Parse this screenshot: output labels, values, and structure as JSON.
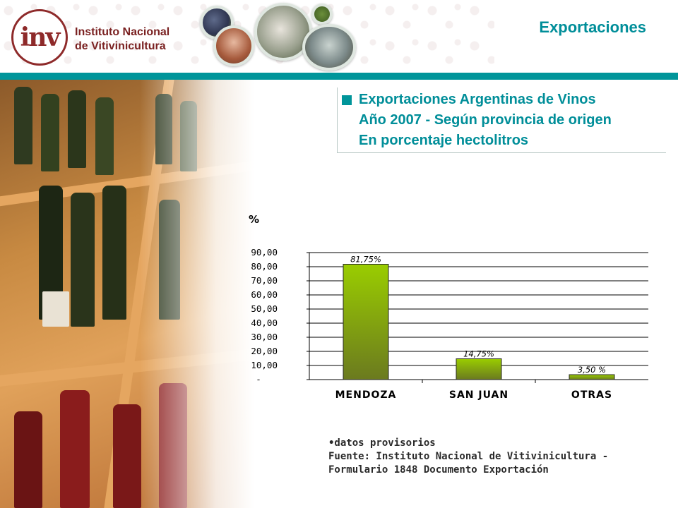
{
  "header": {
    "org_line1": "Instituto Nacional",
    "org_line2": "de Vitivinicultura",
    "logo_letters": "inv",
    "section": "Exportaciones"
  },
  "title": {
    "line1": "Exportaciones Argentinas de Vinos",
    "line2": "Año 2007 - Según provincia de origen",
    "line3": "En porcentaje hectolitros"
  },
  "chart_data": {
    "type": "bar",
    "unit_label": "%",
    "categories": [
      "MENDOZA",
      "SAN JUAN",
      "OTRAS"
    ],
    "values": [
      81.75,
      14.75,
      3.5
    ],
    "data_labels": [
      "81,75%",
      "14,75%",
      "3,50 %"
    ],
    "ylim": [
      0,
      90
    ],
    "yticks": [
      0,
      10,
      20,
      30,
      40,
      50,
      60,
      70,
      80,
      90
    ],
    "ytick_labels": [
      "-",
      "10,00",
      "20,00",
      "30,00",
      "40,00",
      "50,00",
      "60,00",
      "70,00",
      "80,00",
      "90,00"
    ],
    "grid": true,
    "bar_color": "#7fb000"
  },
  "notes": {
    "line1": "•datos provisorios",
    "line2": "Fuente: Instituto Nacional de Vitivinicultura -",
    "line3": "Formulario 1848 Documento Exportación"
  },
  "colors": {
    "accent": "#00959a",
    "brand": "#8e2a2a"
  }
}
